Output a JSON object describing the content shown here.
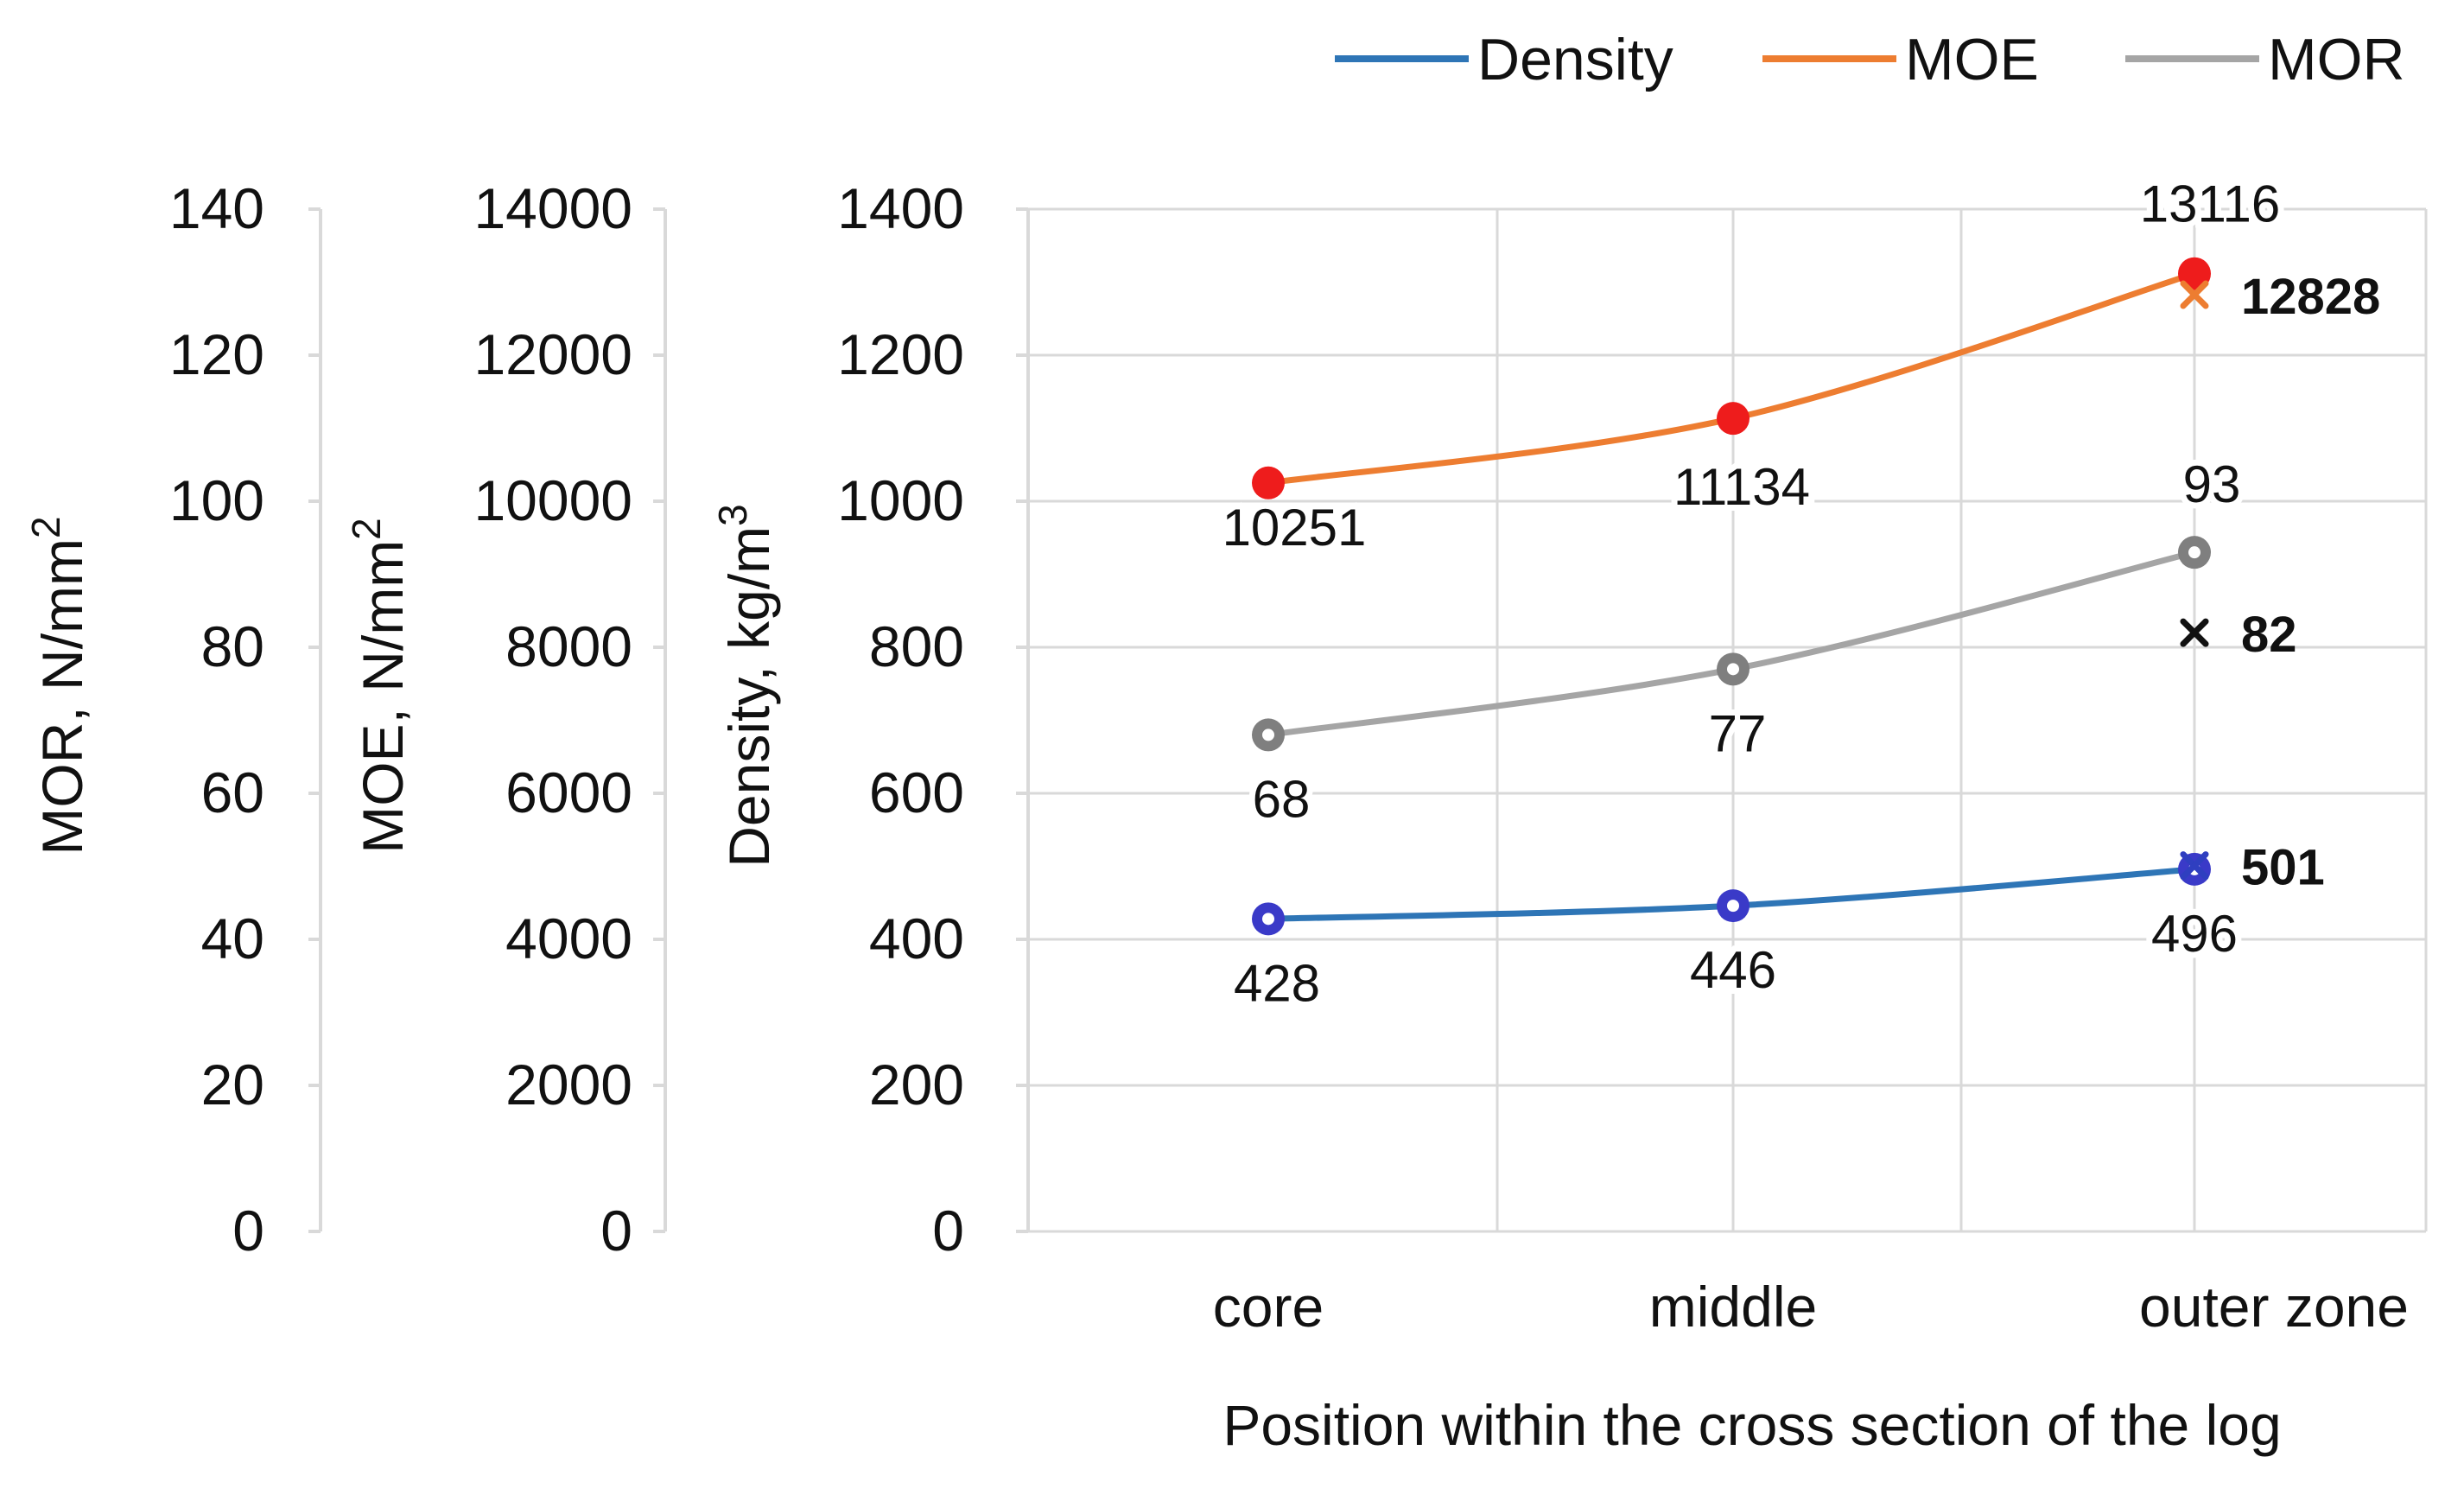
{
  "chart_data": {
    "type": "line",
    "xlabel": "Position within the cross section of the log",
    "categories": [
      "core",
      "middle",
      "outer zone"
    ],
    "legend": {
      "position": "top-right",
      "entries": [
        "Density",
        "MOE",
        "MOR"
      ]
    },
    "axes": {
      "mor": {
        "label": "MOR, N/mm",
        "label_sup": "2",
        "range": [
          0,
          140
        ],
        "ticks": [
          0,
          20,
          40,
          60,
          80,
          100,
          120,
          140
        ]
      },
      "moe": {
        "label": "MOE, N/mm",
        "label_sup": "2",
        "range": [
          0,
          14000
        ],
        "ticks": [
          0,
          2000,
          4000,
          6000,
          8000,
          10000,
          12000,
          14000
        ]
      },
      "density": {
        "label": "Density, kg/m",
        "label_sup": "3",
        "range": [
          0,
          1400
        ],
        "ticks": [
          0,
          200,
          400,
          600,
          800,
          1000,
          1200,
          1400
        ]
      }
    },
    "grid": true,
    "series": [
      {
        "name": "Density",
        "axis": "density",
        "color": "#2e75b6",
        "marker_color": "#3a3ac8",
        "values": [
          428,
          446,
          496
        ],
        "labels": [
          "428",
          "446",
          "496"
        ],
        "extra_point": {
          "category": "outer zone",
          "value": 501,
          "label": "501",
          "marker": "x",
          "color": "#2f3fc0"
        }
      },
      {
        "name": "MOE",
        "axis": "moe",
        "color": "#ed7d31",
        "marker_color": "#ee1c1c",
        "values": [
          10251,
          11134,
          13116
        ],
        "labels": [
          "10251",
          "11134",
          "13116"
        ],
        "extra_point": {
          "category": "outer zone",
          "value": 12828,
          "label": "12828",
          "marker": "x",
          "color": "#ed7d31"
        }
      },
      {
        "name": "MOR",
        "axis": "mor",
        "color": "#a5a5a5",
        "marker_color": "#7f7f7f",
        "values": [
          68,
          77,
          93
        ],
        "labels": [
          "68",
          "77",
          "93"
        ],
        "extra_point": {
          "category": "outer zone",
          "value": 82,
          "label": "82",
          "marker": "x",
          "color": "#111111"
        }
      }
    ]
  }
}
